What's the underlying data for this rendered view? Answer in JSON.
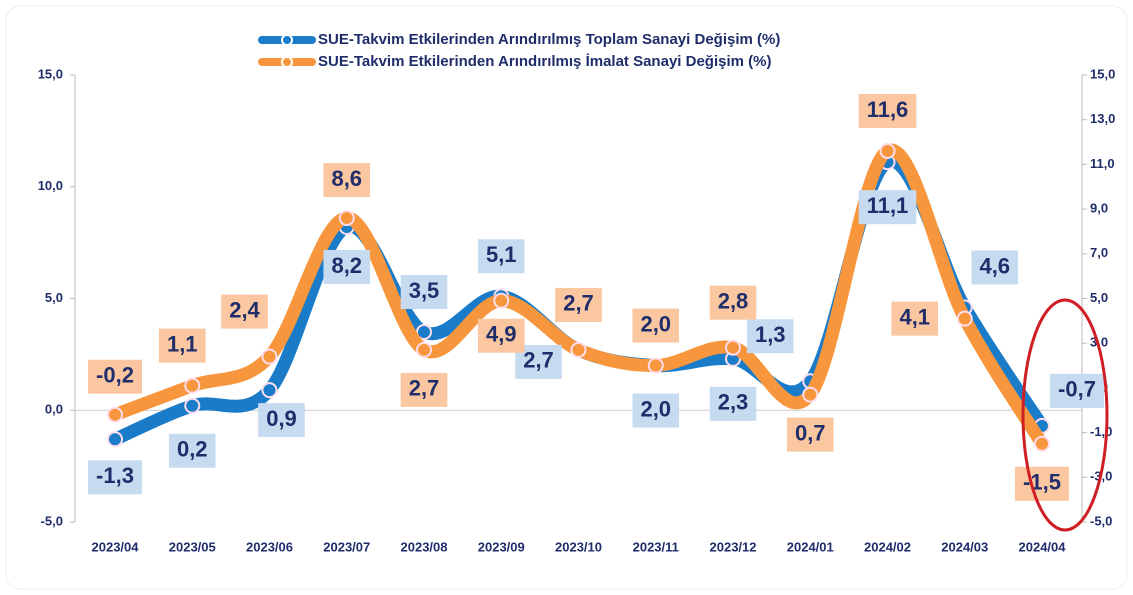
{
  "chart_data": {
    "type": "line",
    "categories": [
      "2023/04",
      "2023/05",
      "2023/06",
      "2023/07",
      "2023/08",
      "2023/09",
      "2023/10",
      "2023/11",
      "2023/12",
      "2024/01",
      "2024/02",
      "2024/03",
      "2024/04"
    ],
    "series": [
      {
        "name": "SUE-Takvim Etkilerinden Arındırılmış Toplam Sanayi Değişim (%)",
        "color": "#1a7cc8",
        "values": [
          -1.3,
          0.2,
          0.9,
          8.2,
          3.5,
          5.1,
          2.7,
          2.0,
          2.3,
          1.3,
          11.1,
          4.6,
          -0.7
        ],
        "value_labels": [
          "-1,3",
          "0,2",
          "0,9",
          "8,2",
          "3,5",
          "5,1",
          "2,7",
          "2,0",
          "2,3",
          "1,3",
          "11,1",
          "4,6",
          "-0,7"
        ]
      },
      {
        "name": "SUE-Takvim Etkilerinden Arındırılmış İmalat Sanayi Değişim (%)",
        "color": "#f7963c",
        "values": [
          -0.2,
          1.1,
          2.4,
          8.6,
          2.7,
          4.9,
          2.7,
          2.0,
          2.8,
          0.7,
          11.6,
          4.1,
          -1.5
        ],
        "value_labels": [
          "-0,2",
          "1,1",
          "2,4",
          "8,6",
          "2,7",
          "4,9",
          "2,7",
          "2,0",
          "2,8",
          "0,7",
          "11,6",
          "4,1",
          "-1,5"
        ]
      }
    ],
    "ylim": [
      -5,
      15
    ],
    "yticks": [
      {
        "value": -5,
        "label": "-5,0"
      },
      {
        "value": 0,
        "label": "0,0"
      },
      {
        "value": 5,
        "label": "5,0"
      },
      {
        "value": 10,
        "label": "10,0"
      },
      {
        "value": 15,
        "label": "15,0"
      }
    ],
    "y2lim": [
      -5,
      15
    ],
    "y2ticks": [
      {
        "value": -5,
        "label": "-5,0"
      },
      {
        "value": -3,
        "label": "-3,0"
      },
      {
        "value": -1,
        "label": "-1,0"
      },
      {
        "value": 1,
        "label": "1,0"
      },
      {
        "value": 3,
        "label": "3,0"
      },
      {
        "value": 5,
        "label": "5,0"
      },
      {
        "value": 7,
        "label": "7,0"
      },
      {
        "value": 9,
        "label": "9,0"
      },
      {
        "value": 11,
        "label": "11,0"
      },
      {
        "value": 13,
        "label": "13,0"
      },
      {
        "value": 15,
        "label": "15,0"
      }
    ]
  }
}
